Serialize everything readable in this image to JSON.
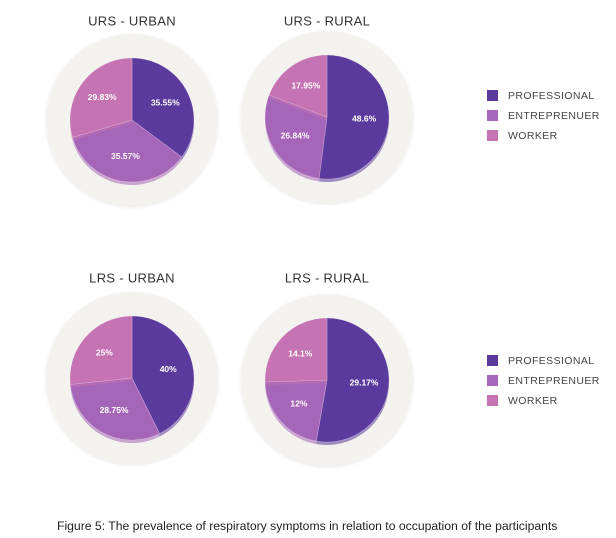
{
  "caption": "Figure 5: The prevalence of respiratory symptoms in relation to occupation of the participants",
  "colors": {
    "professional": "#5b3a9e",
    "entreprenuer": "#a565b8",
    "worker": "#c573b2",
    "plate": "#f4f2ee"
  },
  "chart_data": [
    {
      "type": "pie",
      "title": "URS - URBAN",
      "categories": [
        "PROFESSIONAL",
        "ENTREPRENUER",
        "WORKER"
      ],
      "values": [
        35.55,
        35.57,
        29.83
      ],
      "labels": [
        "35.55%",
        "35.57%",
        "29.83%"
      ]
    },
    {
      "type": "pie",
      "title": "URS - RURAL",
      "categories": [
        "PROFESSIONAL",
        "ENTREPRENUER",
        "WORKER"
      ],
      "values": [
        48.6,
        26.84,
        17.95
      ],
      "labels": [
        "48.6%",
        "26.84%",
        "17.95%"
      ]
    },
    {
      "type": "pie",
      "title": "LRS - URBAN",
      "categories": [
        "PROFESSIONAL",
        "ENTREPRENUER",
        "WORKER"
      ],
      "values": [
        40,
        28.75,
        25
      ],
      "labels": [
        "40%",
        "28.75%",
        "25%"
      ]
    },
    {
      "type": "pie",
      "title": "LRS - RURAL",
      "categories": [
        "PROFESSIONAL",
        "ENTREPRENUER",
        "WORKER"
      ],
      "values": [
        29.17,
        12,
        14.1
      ],
      "labels": [
        "29.17%",
        "12%",
        "14.1%"
      ]
    }
  ],
  "legends": [
    {
      "items": [
        "PROFESSIONAL",
        "ENTREPRENUER",
        "WORKER"
      ]
    },
    {
      "items": [
        "PROFESSIONAL",
        "ENTREPRENUER",
        "WORKER"
      ]
    }
  ]
}
